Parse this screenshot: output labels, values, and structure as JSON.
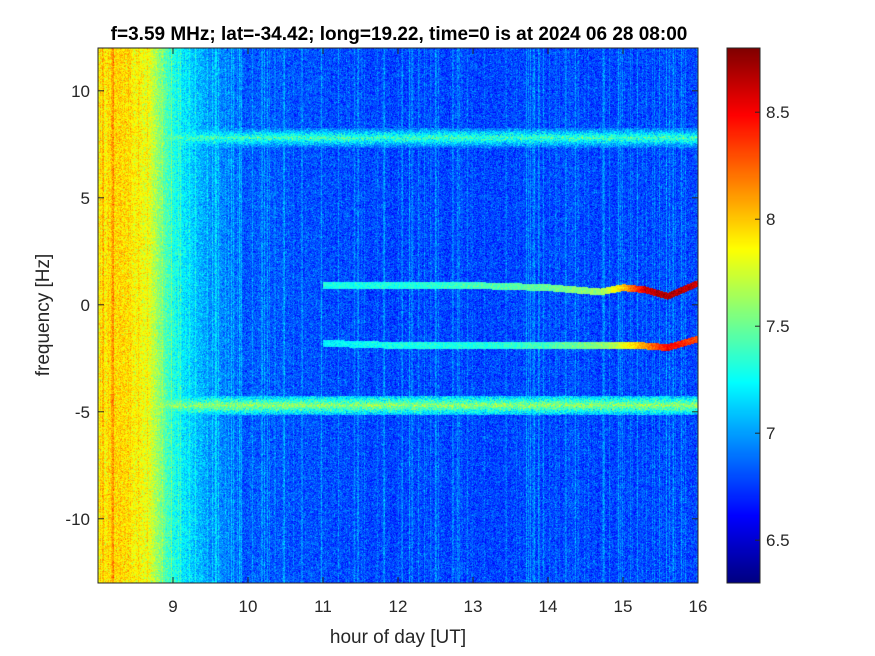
{
  "chart_data": {
    "type": "heatmap",
    "title": "f=3.59 MHz;  lat=-34.42; long=19.22, time=0 is at 2024 06 28 08:00",
    "xlabel": "hour of day [UT]",
    "ylabel": "frequency [Hz]",
    "xlim": [
      8.0,
      16.0
    ],
    "ylim": [
      -13.0,
      12.0
    ],
    "clim": [
      6.3,
      8.8
    ],
    "colormap": "jet",
    "xticks": [
      9,
      10,
      11,
      12,
      13,
      14,
      15,
      16
    ],
    "xtick_labels": [
      "9",
      "10",
      "11",
      "12",
      "13",
      "14",
      "15",
      "16"
    ],
    "yticks": [
      10,
      5,
      0,
      -5,
      -10
    ],
    "ytick_labels": [
      "10",
      "5",
      "0",
      "-5",
      "-10"
    ],
    "colorbar_ticks": [
      8.5,
      8,
      7.5,
      7,
      6.5
    ],
    "colorbar_tick_labels": [
      "8.5",
      "8",
      "7.5",
      "7",
      "6.5"
    ],
    "background_level": {
      "hours": [
        8.0,
        8.3,
        8.7,
        9.0,
        9.5,
        10.0,
        12.0,
        14.0,
        16.0
      ],
      "values": [
        7.9,
        8.0,
        7.8,
        7.3,
        7.0,
        6.85,
        6.8,
        6.8,
        6.8
      ]
    },
    "features": [
      {
        "kind": "band",
        "frequency_hz": 7.8,
        "hours": [
          8.0,
          16.0
        ],
        "level": 7.4
      },
      {
        "kind": "band",
        "frequency_hz": -4.7,
        "hours": [
          8.0,
          16.0
        ],
        "level": 7.6
      },
      {
        "kind": "trace",
        "hours": [
          11.0,
          12.0,
          13.0,
          14.0,
          14.7,
          15.0,
          15.3,
          15.6,
          16.0
        ],
        "frequency_hz": [
          0.9,
          0.9,
          0.9,
          0.8,
          0.6,
          0.8,
          0.7,
          0.4,
          1.0
        ],
        "level": [
          7.3,
          7.3,
          7.4,
          7.5,
          7.6,
          8.0,
          8.6,
          8.7,
          8.6
        ]
      },
      {
        "kind": "trace",
        "hours": [
          11.0,
          12.0,
          13.0,
          14.0,
          14.8,
          15.2,
          15.6,
          16.0
        ],
        "frequency_hz": [
          -1.8,
          -1.9,
          -1.9,
          -1.9,
          -1.9,
          -1.9,
          -2.0,
          -1.6
        ],
        "level": [
          7.2,
          7.3,
          7.3,
          7.4,
          7.6,
          8.0,
          8.5,
          8.3
        ]
      }
    ]
  }
}
